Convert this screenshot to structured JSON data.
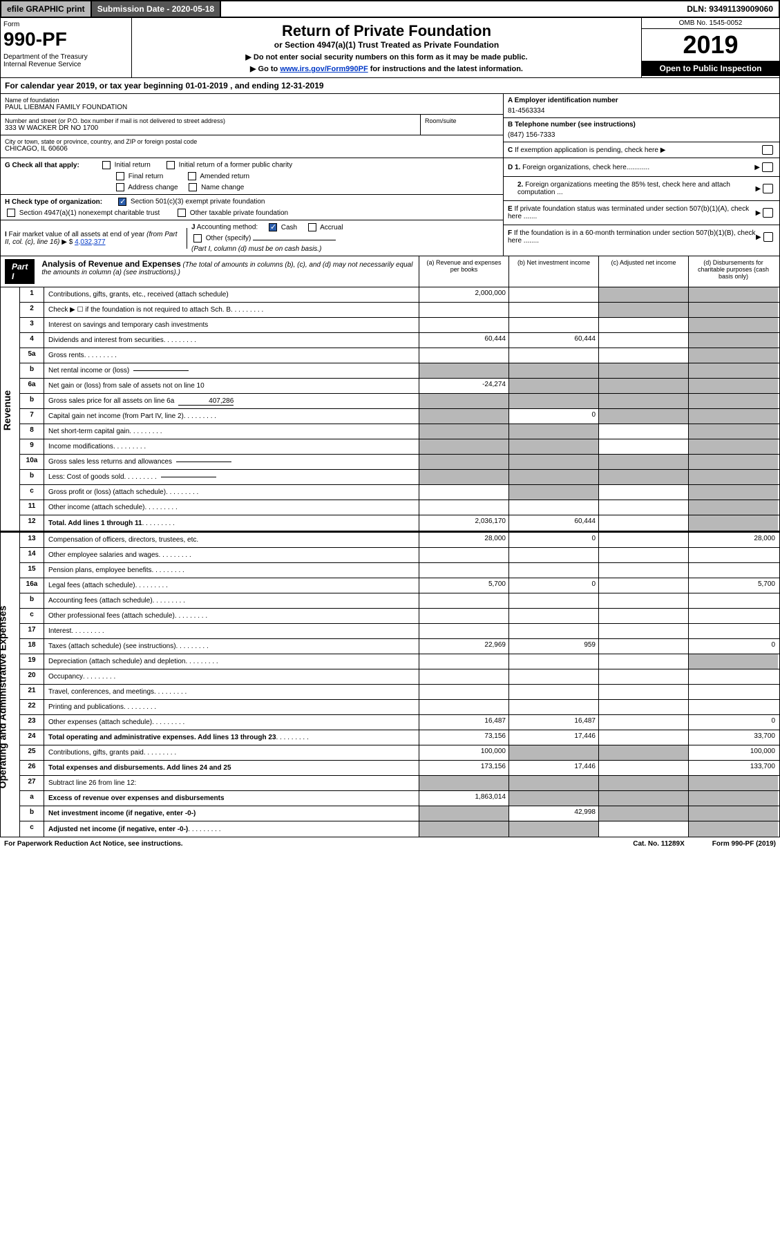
{
  "top": {
    "efile": "efile GRAPHIC print",
    "submission": "Submission Date - 2020-05-18",
    "dln": "DLN: 93491139009060"
  },
  "header": {
    "form": "Form",
    "num": "990-PF",
    "dept": "Department of the Treasury\nInternal Revenue Service",
    "title": "Return of Private Foundation",
    "sub": "or Section 4947(a)(1) Trust Treated as Private Foundation",
    "note1": "▶ Do not enter social security numbers on this form as it may be made public.",
    "note2": "▶ Go to ",
    "link": "www.irs.gov/Form990PF",
    "note3": " for instructions and the latest information.",
    "omb": "OMB No. 1545-0052",
    "year": "2019",
    "open": "Open to Public Inspection"
  },
  "calyear": "For calendar year 2019, or tax year beginning 01-01-2019                          , and ending 12-31-2019",
  "foundation": {
    "name_lbl": "Name of foundation",
    "name": "PAUL LIEBMAN FAMILY FOUNDATION",
    "addr_lbl": "Number and street (or P.O. box number if mail is not delivered to street address)",
    "addr": "333 W WACKER DR NO 1700",
    "room_lbl": "Room/suite",
    "city_lbl": "City or town, state or province, country, and ZIP or foreign postal code",
    "city": "CHICAGO, IL  60606",
    "ein_lbl": "A Employer identification number",
    "ein": "81-4563334",
    "tel_lbl": "B Telephone number (see instructions)",
    "tel": "(847) 156-7333",
    "c_lbl": "C If exemption application is pending, check here ▶"
  },
  "g": {
    "lbl": "G Check all that apply:",
    "o1": "Initial return",
    "o2": "Initial return of a former public charity",
    "o3": "Final return",
    "o4": "Amended return",
    "o5": "Address change",
    "o6": "Name change"
  },
  "h": {
    "lbl": "H Check type of organization:",
    "o1": "Section 501(c)(3) exempt private foundation",
    "o2": "Section 4947(a)(1) nonexempt charitable trust",
    "o3": "Other taxable private foundation"
  },
  "i": {
    "lbl": "I Fair market value of all assets at end of year (from Part II, col. (c), line 16) ▶ $",
    "val": "4,032,377"
  },
  "j": {
    "lbl": "J Accounting method:",
    "cash": "Cash",
    "accrual": "Accrual",
    "other": "Other (specify)",
    "note": "(Part I, column (d) must be on cash basis.)"
  },
  "d": {
    "d1": "D 1. Foreign organizations, check here............",
    "d2": "2. Foreign organizations meeting the 85% test, check here and attach computation ...",
    "e": "E  If private foundation status was terminated under section 507(b)(1)(A), check here .......",
    "f": "F  If the foundation is in a 60-month termination under section 507(b)(1)(B), check here ........"
  },
  "part1": {
    "label": "Part I",
    "title": "Analysis of Revenue and Expenses",
    "note": "(The total of amounts in columns (b), (c), and (d) may not necessarily equal the amounts in column (a) (see instructions).)",
    "col_a": "(a)   Revenue and expenses per books",
    "col_b": "(b)   Net investment income",
    "col_c": "(c)   Adjusted net income",
    "col_d": "(d)   Disbursements for charitable purposes (cash basis only)"
  },
  "revenue_label": "Revenue",
  "expense_label": "Operating and Administrative Expenses",
  "rows": [
    {
      "n": "1",
      "d": "Contributions, gifts, grants, etc., received (attach schedule)",
      "a": "2,000,000",
      "b": "",
      "c": "shaded",
      "dd": "shaded"
    },
    {
      "n": "2",
      "d": "Check ▶ ☐ if the foundation is not required to attach Sch. B",
      "a": "",
      "b": "",
      "c": "shaded",
      "dd": "shaded",
      "dots": true
    },
    {
      "n": "3",
      "d": "Interest on savings and temporary cash investments",
      "a": "",
      "b": "",
      "c": "",
      "dd": "shaded"
    },
    {
      "n": "4",
      "d": "Dividends and interest from securities",
      "a": "60,444",
      "b": "60,444",
      "c": "",
      "dd": "shaded",
      "dots": true
    },
    {
      "n": "5a",
      "d": "Gross rents",
      "a": "",
      "b": "",
      "c": "",
      "dd": "shaded",
      "dots": true
    },
    {
      "n": "b",
      "d": "Net rental income or (loss)",
      "a": "shaded",
      "b": "shaded",
      "c": "shaded",
      "dd": "shaded",
      "inline": ""
    },
    {
      "n": "6a",
      "d": "Net gain or (loss) from sale of assets not on line 10",
      "a": "-24,274",
      "b": "shaded",
      "c": "shaded",
      "dd": "shaded"
    },
    {
      "n": "b",
      "d": "Gross sales price for all assets on line 6a",
      "a": "shaded",
      "b": "shaded",
      "c": "shaded",
      "dd": "shaded",
      "inline": "407,286"
    },
    {
      "n": "7",
      "d": "Capital gain net income (from Part IV, line 2)",
      "a": "shaded",
      "b": "0",
      "c": "shaded",
      "dd": "shaded",
      "dots": true
    },
    {
      "n": "8",
      "d": "Net short-term capital gain",
      "a": "shaded",
      "b": "shaded",
      "c": "",
      "dd": "shaded",
      "dots": true
    },
    {
      "n": "9",
      "d": "Income modifications",
      "a": "shaded",
      "b": "shaded",
      "c": "",
      "dd": "shaded",
      "dots": true
    },
    {
      "n": "10a",
      "d": "Gross sales less returns and allowances",
      "a": "shaded",
      "b": "shaded",
      "c": "shaded",
      "dd": "shaded",
      "inline": ""
    },
    {
      "n": "b",
      "d": "Less: Cost of goods sold",
      "a": "shaded",
      "b": "shaded",
      "c": "shaded",
      "dd": "shaded",
      "inline": "",
      "dots": true
    },
    {
      "n": "c",
      "d": "Gross profit or (loss) (attach schedule)",
      "a": "",
      "b": "shaded",
      "c": "",
      "dd": "shaded",
      "dots": true
    },
    {
      "n": "11",
      "d": "Other income (attach schedule)",
      "a": "",
      "b": "",
      "c": "",
      "dd": "shaded",
      "dots": true
    },
    {
      "n": "12",
      "d": "Total. Add lines 1 through 11",
      "a": "2,036,170",
      "b": "60,444",
      "c": "",
      "dd": "shaded",
      "bold": true,
      "dots": true
    }
  ],
  "exp_rows": [
    {
      "n": "13",
      "d": "Compensation of officers, directors, trustees, etc.",
      "a": "28,000",
      "b": "0",
      "c": "",
      "dd": "28,000"
    },
    {
      "n": "14",
      "d": "Other employee salaries and wages",
      "a": "",
      "b": "",
      "c": "",
      "dd": "",
      "dots": true
    },
    {
      "n": "15",
      "d": "Pension plans, employee benefits",
      "a": "",
      "b": "",
      "c": "",
      "dd": "",
      "dots": true
    },
    {
      "n": "16a",
      "d": "Legal fees (attach schedule)",
      "a": "5,700",
      "b": "0",
      "c": "",
      "dd": "5,700",
      "dots": true
    },
    {
      "n": "b",
      "d": "Accounting fees (attach schedule)",
      "a": "",
      "b": "",
      "c": "",
      "dd": "",
      "dots": true
    },
    {
      "n": "c",
      "d": "Other professional fees (attach schedule)",
      "a": "",
      "b": "",
      "c": "",
      "dd": "",
      "dots": true
    },
    {
      "n": "17",
      "d": "Interest",
      "a": "",
      "b": "",
      "c": "",
      "dd": "",
      "dots": true
    },
    {
      "n": "18",
      "d": "Taxes (attach schedule) (see instructions)",
      "a": "22,969",
      "b": "959",
      "c": "",
      "dd": "0",
      "dots": true
    },
    {
      "n": "19",
      "d": "Depreciation (attach schedule) and depletion",
      "a": "",
      "b": "",
      "c": "",
      "dd": "shaded",
      "dots": true
    },
    {
      "n": "20",
      "d": "Occupancy",
      "a": "",
      "b": "",
      "c": "",
      "dd": "",
      "dots": true
    },
    {
      "n": "21",
      "d": "Travel, conferences, and meetings",
      "a": "",
      "b": "",
      "c": "",
      "dd": "",
      "dots": true
    },
    {
      "n": "22",
      "d": "Printing and publications",
      "a": "",
      "b": "",
      "c": "",
      "dd": "",
      "dots": true
    },
    {
      "n": "23",
      "d": "Other expenses (attach schedule)",
      "a": "16,487",
      "b": "16,487",
      "c": "",
      "dd": "0",
      "dots": true
    },
    {
      "n": "24",
      "d": "Total operating and administrative expenses. Add lines 13 through 23",
      "a": "73,156",
      "b": "17,446",
      "c": "",
      "dd": "33,700",
      "bold": true,
      "dots": true
    },
    {
      "n": "25",
      "d": "Contributions, gifts, grants paid",
      "a": "100,000",
      "b": "shaded",
      "c": "shaded",
      "dd": "100,000",
      "dots": true
    },
    {
      "n": "26",
      "d": "Total expenses and disbursements. Add lines 24 and 25",
      "a": "173,156",
      "b": "17,446",
      "c": "",
      "dd": "133,700",
      "bold": true
    },
    {
      "n": "27",
      "d": "Subtract line 26 from line 12:",
      "a": "shaded",
      "b": "shaded",
      "c": "shaded",
      "dd": "shaded"
    },
    {
      "n": "a",
      "d": "Excess of revenue over expenses and disbursements",
      "a": "1,863,014",
      "b": "shaded",
      "c": "shaded",
      "dd": "shaded",
      "bold": true
    },
    {
      "n": "b",
      "d": "Net investment income (if negative, enter -0-)",
      "a": "shaded",
      "b": "42,998",
      "c": "shaded",
      "dd": "shaded",
      "bold": true
    },
    {
      "n": "c",
      "d": "Adjusted net income (if negative, enter -0-)",
      "a": "shaded",
      "b": "shaded",
      "c": "",
      "dd": "shaded",
      "bold": true,
      "dots": true
    }
  ],
  "footer": {
    "left": "For Paperwork Reduction Act Notice, see instructions.",
    "mid": "Cat. No. 11289X",
    "right": "Form 990-PF (2019)"
  }
}
